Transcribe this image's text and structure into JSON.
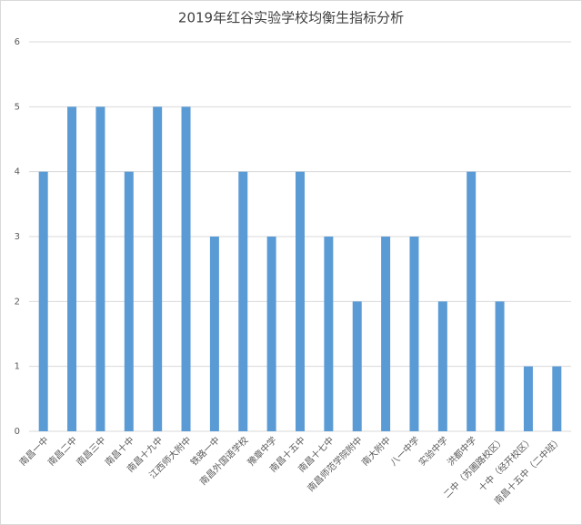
{
  "chart_data": {
    "type": "bar",
    "title": "2019年红谷实验学校均衡生指标分析",
    "categories": [
      "南昌一中",
      "南昌二中",
      "南昌三中",
      "南昌十中",
      "南昌十九中",
      "江西师大附中",
      "铁路一中",
      "南昌外国语学校",
      "豫章中学",
      "南昌十五中",
      "南昌十七中",
      "南昌师范学院附中",
      "南大附中",
      "八一中学",
      "实验中学",
      "洪都中学",
      "二中（苏圃路校区）",
      "十中（经开校区）",
      "南昌十五中（二中班）"
    ],
    "values": [
      4,
      5,
      5,
      4,
      5,
      5,
      3,
      4,
      3,
      4,
      3,
      2,
      3,
      3,
      2,
      4,
      2,
      1,
      1
    ],
    "color": "#5b9bd5",
    "ylim": [
      0,
      6
    ],
    "yticks": [
      0,
      1,
      2,
      3,
      4,
      5,
      6
    ],
    "grid": true
  }
}
